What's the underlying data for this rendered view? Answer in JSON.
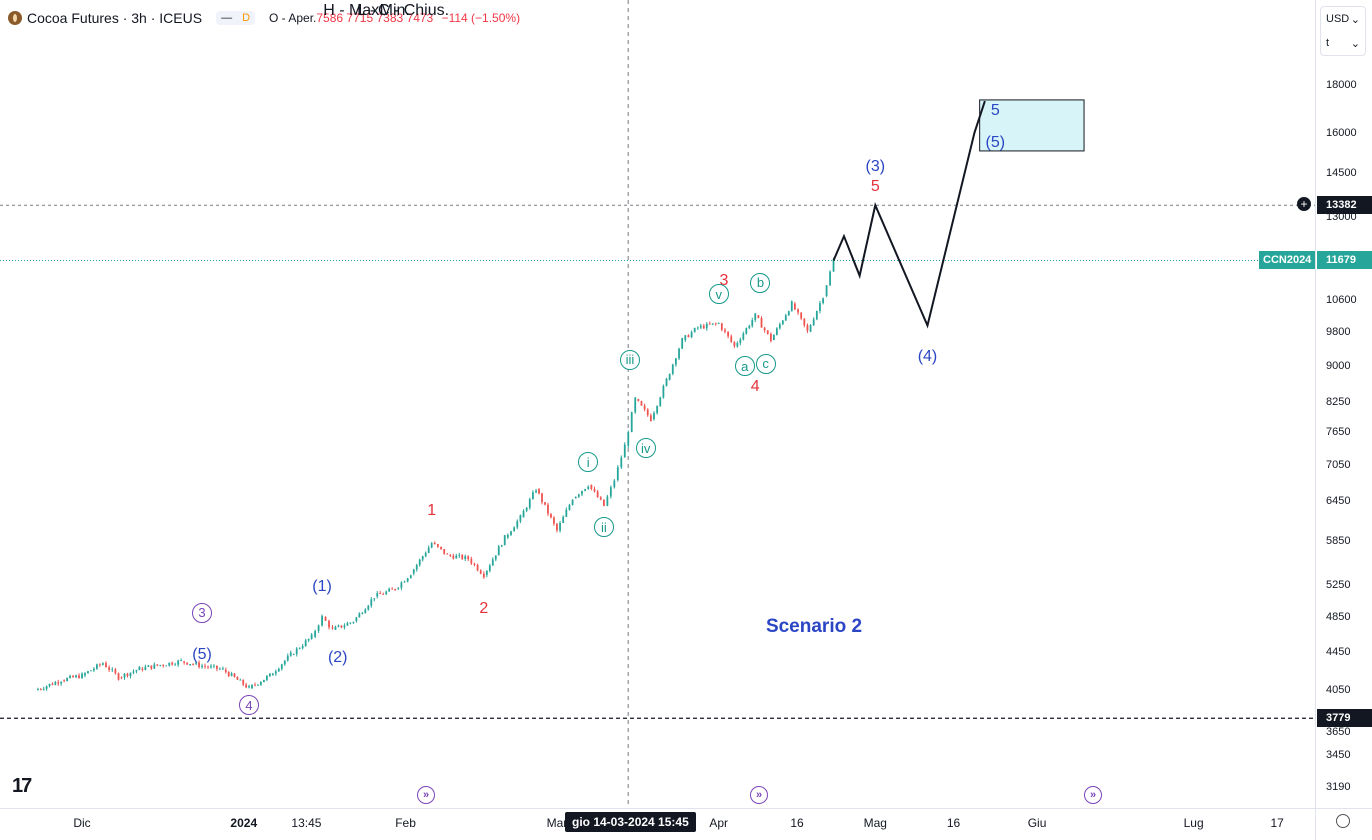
{
  "legend": {
    "title": "Cocoa Futures · 3h · ICEUS",
    "pill_left": "—",
    "pill_d": "D",
    "open_label": "O - Aper.",
    "open": "7586",
    "high_label": "H - Max.",
    "high": "7715",
    "low_label": "L - Min.",
    "low": "7383",
    "close_label": "C - Chius.",
    "close": "7473",
    "change": "−114 (−1.50%)"
  },
  "currency": "USD",
  "currency_sub": "t",
  "crosshair_time": "gio 14-03-2024   15:45",
  "scenario_label": "Scenario 2",
  "badges": {
    "target": "13382",
    "symbol": "CCN2024",
    "last": "11679",
    "low_line": "3779"
  },
  "colors": {
    "up": "#26a69a",
    "down": "#ef5350",
    "last_price": "#26a69a",
    "wave_red": "#e5303a",
    "wave_blue": "#2b46c4",
    "wave_green": "#16998a",
    "wave_purple": "#7a46b8",
    "target_box": "#d7f4f8"
  },
  "chart_data": {
    "type": "candlestick",
    "title": "Cocoa Futures · 3h · ICEUS",
    "y_scale": "log",
    "ylim": [
      3190,
      21000
    ],
    "y_ticks": [
      "18000",
      "16000",
      "14500",
      "13000",
      "10600",
      "9800",
      "9000",
      "8250",
      "7650",
      "7050",
      "6450",
      "5850",
      "5250",
      "4850",
      "4450",
      "4050",
      "3650",
      "3450",
      "3190"
    ],
    "x_ticks": [
      "Dic",
      "2024",
      "13:45",
      "Feb",
      "Mar",
      "Apr",
      "16",
      "Mag",
      "16",
      "Giu",
      "Lug",
      "17"
    ],
    "price_path": [
      [
        "2023-11-22",
        4050
      ],
      [
        "2023-11-27",
        4150
      ],
      [
        "2023-12-01",
        4200
      ],
      [
        "2023-12-05",
        4330
      ],
      [
        "2023-12-08",
        4180
      ],
      [
        "2023-12-12",
        4270
      ],
      [
        "2023-12-16",
        4310
      ],
      [
        "2023-12-20",
        4350
      ],
      [
        "2023-12-24",
        4300
      ],
      [
        "2023-12-28",
        4260
      ],
      [
        "2024-01-02",
        4070
      ],
      [
        "2024-01-06",
        4200
      ],
      [
        "2024-01-10",
        4420
      ],
      [
        "2024-01-14",
        4620
      ],
      [
        "2024-01-16",
        4850
      ],
      [
        "2024-01-18",
        4700
      ],
      [
        "2024-01-22",
        4800
      ],
      [
        "2024-01-26",
        5100
      ],
      [
        "2024-01-30",
        5200
      ],
      [
        "2024-02-02",
        5400
      ],
      [
        "2024-02-06",
        5820
      ],
      [
        "2024-02-09",
        5650
      ],
      [
        "2024-02-13",
        5600
      ],
      [
        "2024-02-16",
        5380
      ],
      [
        "2024-02-20",
        5900
      ],
      [
        "2024-02-23",
        6200
      ],
      [
        "2024-02-26",
        6650
      ],
      [
        "2024-03-01",
        6000
      ],
      [
        "2024-03-04",
        6500
      ],
      [
        "2024-03-07",
        6720
      ],
      [
        "2024-03-10",
        6380
      ],
      [
        "2024-03-12",
        6800
      ],
      [
        "2024-03-14",
        7400
      ],
      [
        "2024-03-16",
        8300
      ],
      [
        "2024-03-19",
        7900
      ],
      [
        "2024-03-22",
        8700
      ],
      [
        "2024-03-25",
        9600
      ],
      [
        "2024-03-28",
        9900
      ],
      [
        "2024-04-01",
        10000
      ],
      [
        "2024-04-04",
        9450
      ],
      [
        "2024-04-08",
        10200
      ],
      [
        "2024-04-11",
        9600
      ],
      [
        "2024-04-15",
        10500
      ],
      [
        "2024-04-18",
        9800
      ],
      [
        "2024-04-21",
        10700
      ],
      [
        "2024-04-23",
        11679
      ]
    ],
    "projection": [
      [
        "2024-04-23",
        11679
      ],
      [
        "2024-04-25",
        12400
      ],
      [
        "2024-04-28",
        11250
      ],
      [
        "2024-05-01",
        13382
      ],
      [
        "2024-05-11",
        9950
      ],
      [
        "2024-05-20",
        16000
      ],
      [
        "2024-05-22",
        17300
      ]
    ],
    "target_zone": {
      "y_min": 15300,
      "y_max": 17350
    },
    "horizontal_levels": [
      {
        "value": 13382,
        "style": "dashed"
      },
      {
        "value": 11679,
        "style": "dotted"
      },
      {
        "value": 3779,
        "style": "dashed"
      }
    ],
    "crosshair_x": "2024-03-14 15:45",
    "wave_labels": [
      {
        "text": "1",
        "color": "red",
        "x": "2024-02-06",
        "y": 6300
      },
      {
        "text": "2",
        "color": "red",
        "x": "2024-02-16",
        "y": 4950
      },
      {
        "text": "3",
        "color": "red",
        "x": "2024-04-02",
        "y": 11100
      },
      {
        "text": "4",
        "color": "red",
        "x": "2024-04-08",
        "y": 8550
      },
      {
        "text": "5",
        "color": "red",
        "x": "2024-05-01",
        "y": 14000
      },
      {
        "text": "(1)",
        "color": "blue",
        "x": "2024-01-16",
        "y": 5220
      },
      {
        "text": "(2)",
        "color": "blue",
        "x": "2024-01-19",
        "y": 4380
      },
      {
        "text": "(3)",
        "color": "blue",
        "x": "2024-05-01",
        "y": 14700
      },
      {
        "text": "(4)",
        "color": "blue",
        "x": "2024-05-11",
        "y": 9200
      },
      {
        "text": "(5)",
        "color": "blue",
        "x": "2023-12-24",
        "y": 4420
      },
      {
        "text": "(5)",
        "color": "blue",
        "x": "2024-05-24",
        "y": 15600
      },
      {
        "text": "5",
        "color": "blue",
        "x": "2024-05-24",
        "y": 16900
      },
      {
        "text": "i",
        "color": "green",
        "x": "2024-03-07",
        "y": 7100
      },
      {
        "text": "ii",
        "color": "green",
        "x": "2024-03-10",
        "y": 6050
      },
      {
        "text": "iii",
        "color": "green",
        "x": "2024-03-15",
        "y": 9150
      },
      {
        "text": "iv",
        "color": "green",
        "x": "2024-03-18",
        "y": 7350
      },
      {
        "text": "v",
        "color": "green",
        "x": "2024-04-01",
        "y": 10750
      },
      {
        "text": "a",
        "color": "green",
        "x": "2024-04-06",
        "y": 9000
      },
      {
        "text": "b",
        "color": "green",
        "x": "2024-04-09",
        "y": 11050
      },
      {
        "text": "c",
        "color": "green",
        "x": "2024-04-10",
        "y": 9050
      },
      {
        "text": "3",
        "color": "purple",
        "x": "2023-12-24",
        "y": 4900
      },
      {
        "text": "4",
        "color": "purple",
        "x": "2024-01-02",
        "y": 3900
      }
    ]
  }
}
